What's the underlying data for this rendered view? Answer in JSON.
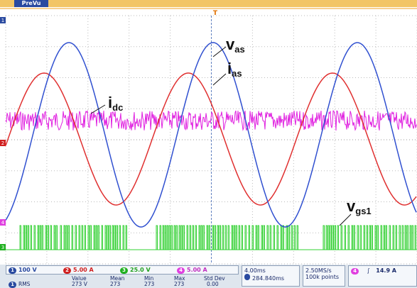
{
  "header": {
    "mode": "PreVu"
  },
  "markers": {
    "trigger": "T",
    "ch1": "1",
    "ch2": "2",
    "ch3": "3",
    "ch4": "4"
  },
  "labels": {
    "vas": {
      "main": "v",
      "sub": "as"
    },
    "ias": {
      "main": "i",
      "sub": "as"
    },
    "idc": {
      "main": "i",
      "sub": "dc"
    },
    "vgs1": {
      "main": "v",
      "sub": "gs1"
    }
  },
  "channels": [
    {
      "number": "1",
      "scale": "100 V"
    },
    {
      "number": "2",
      "scale": "5.00 A"
    },
    {
      "number": "3",
      "scale": "25.0 V"
    },
    {
      "number": "4",
      "scale": "5.00 A"
    }
  ],
  "timebase": {
    "scale": "4.00ms",
    "position": "284.840ms"
  },
  "acquisition": {
    "rate": "2.50MS/s",
    "points": "100k points"
  },
  "trigger": {
    "channel": "4",
    "level": "14.9 A"
  },
  "measurements": {
    "headers": [
      "Value",
      "Mean",
      "Min",
      "Max",
      "Std Dev"
    ],
    "rows": [
      {
        "channel": "1",
        "name": "RMS",
        "cells": [
          "273 V",
          "273",
          "273",
          "273",
          "0.00"
        ]
      }
    ]
  }
}
